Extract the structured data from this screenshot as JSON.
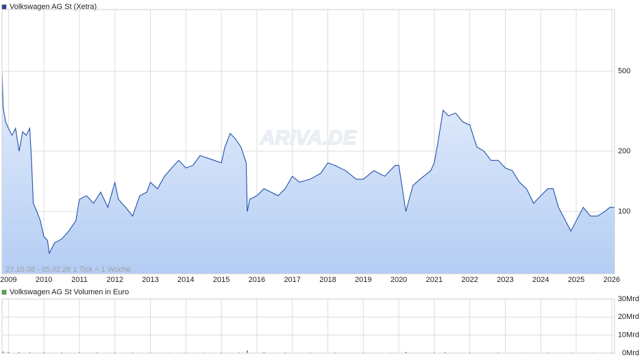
{
  "chart_data": [
    {
      "type": "area",
      "title": "Volkswagen AG St (Xetra)",
      "annotation": "27.10.08 - 05.02.26   1 Tick = 1 Woche",
      "watermark": "ARIVA.DE",
      "log_scale": true,
      "grid": true,
      "x": [
        2008.82,
        2008.85,
        2008.92,
        2009.0,
        2009.1,
        2009.2,
        2009.3,
        2009.4,
        2009.5,
        2009.6,
        2009.65,
        2009.7,
        2009.8,
        2009.9,
        2010.0,
        2010.1,
        2010.15,
        2010.3,
        2010.5,
        2010.7,
        2010.9,
        2011.0,
        2011.2,
        2011.4,
        2011.6,
        2011.8,
        2012.0,
        2012.1,
        2012.3,
        2012.5,
        2012.7,
        2012.9,
        2013.0,
        2013.2,
        2013.4,
        2013.6,
        2013.8,
        2014.0,
        2014.2,
        2014.4,
        2014.6,
        2014.8,
        2015.0,
        2015.1,
        2015.25,
        2015.4,
        2015.55,
        2015.7,
        2015.73,
        2015.8,
        2016.0,
        2016.2,
        2016.4,
        2016.6,
        2016.8,
        2017.0,
        2017.2,
        2017.5,
        2017.8,
        2018.0,
        2018.2,
        2018.5,
        2018.8,
        2019.0,
        2019.3,
        2019.6,
        2019.9,
        2020.0,
        2020.2,
        2020.4,
        2020.6,
        2020.9,
        2021.0,
        2021.1,
        2021.25,
        2021.4,
        2021.6,
        2021.8,
        2022.0,
        2022.2,
        2022.4,
        2022.6,
        2022.8,
        2023.0,
        2023.2,
        2023.4,
        2023.6,
        2023.8,
        2024.0,
        2024.2,
        2024.35,
        2024.5,
        2024.7,
        2024.85,
        2025.0,
        2025.2,
        2025.4,
        2025.6,
        2025.8,
        2025.95,
        2026.08
      ],
      "series": [
        {
          "name": "Volkswagen AG St (Xetra)",
          "color": "#1f4fa8",
          "values": [
            500,
            330,
            280,
            260,
            240,
            260,
            200,
            250,
            240,
            260,
            180,
            110,
            100,
            90,
            75,
            72,
            62,
            70,
            73,
            80,
            90,
            115,
            120,
            110,
            125,
            105,
            140,
            115,
            105,
            95,
            120,
            125,
            140,
            130,
            150,
            165,
            180,
            165,
            170,
            190,
            185,
            180,
            175,
            210,
            245,
            230,
            210,
            175,
            100,
            115,
            120,
            130,
            125,
            120,
            130,
            150,
            140,
            145,
            155,
            175,
            170,
            160,
            145,
            145,
            160,
            150,
            170,
            170,
            100,
            135,
            145,
            160,
            175,
            220,
            320,
            300,
            310,
            280,
            270,
            210,
            200,
            180,
            180,
            165,
            160,
            140,
            130,
            110,
            120,
            130,
            130,
            105,
            90,
            80,
            90,
            105,
            95,
            95,
            100,
            105,
            105
          ]
        }
      ],
      "xlim": [
        2008.82,
        2026.08
      ],
      "xticks": [
        2009,
        2010,
        2011,
        2012,
        2013,
        2014,
        2015,
        2016,
        2017,
        2018,
        2019,
        2020,
        2021,
        2022,
        2023,
        2024,
        2025,
        2026
      ],
      "ylim": [
        49,
        1015
      ],
      "yticks": [
        100,
        200,
        500
      ]
    },
    {
      "type": "bar",
      "title": "Volkswagen AG St Volumen in Euro",
      "color": "#4caf50",
      "grid": true,
      "x": [
        2008.85,
        2009.0,
        2009.3,
        2009.6,
        2010.0,
        2010.5,
        2011.0,
        2011.5,
        2012.0,
        2012.5,
        2013.0,
        2013.5,
        2014.0,
        2014.5,
        2015.0,
        2015.5,
        2015.73,
        2016.2,
        2016.8,
        2017.5,
        2018.2,
        2019.0,
        2019.8,
        2020.2,
        2021.0,
        2021.3,
        2022.0,
        2022.8,
        2023.5,
        2024.2,
        2024.9,
        2025.5,
        2026.0
      ],
      "values": [
        900000000,
        700000000,
        600000000,
        500000000,
        550000000,
        450000000,
        500000000,
        450000000,
        400000000,
        380000000,
        350000000,
        330000000,
        320000000,
        300000000,
        350000000,
        400000000,
        1500000000,
        600000000,
        400000000,
        350000000,
        380000000,
        330000000,
        300000000,
        700000000,
        450000000,
        600000000,
        400000000,
        350000000,
        300000000,
        320000000,
        350000000,
        300000000,
        300000000
      ],
      "ylim": [
        0,
        30000000000
      ],
      "yticks": [
        {
          "value": 0,
          "label": "0Mrd"
        },
        {
          "value": 10000000000,
          "label": "10Mrd"
        },
        {
          "value": 20000000000,
          "label": "20Mrd"
        },
        {
          "value": 30000000000,
          "label": "30Mrd"
        }
      ]
    }
  ]
}
